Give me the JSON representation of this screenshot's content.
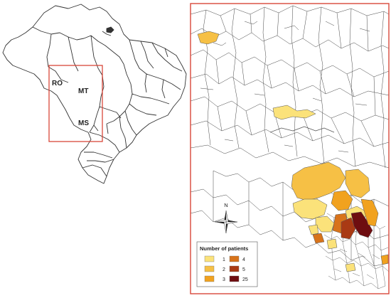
{
  "overview_map": {
    "state_labels": [
      "RO",
      "MT",
      "MS"
    ]
  },
  "detail_map": {
    "north_arrow_label": "N"
  },
  "legend": {
    "title": "Number of patients",
    "items": [
      {
        "label": "1",
        "color": "#fbe27a"
      },
      {
        "label": "2",
        "color": "#f6c045"
      },
      {
        "label": "3",
        "color": "#f1a21f"
      },
      {
        "label": "4",
        "color": "#d8731a"
      },
      {
        "label": "5",
        "color": "#a93a14"
      },
      {
        "label": "25",
        "color": "#6e0d10"
      }
    ]
  },
  "colors": {
    "highlight_frame": "#d9473a",
    "border_lines": "#333333"
  }
}
